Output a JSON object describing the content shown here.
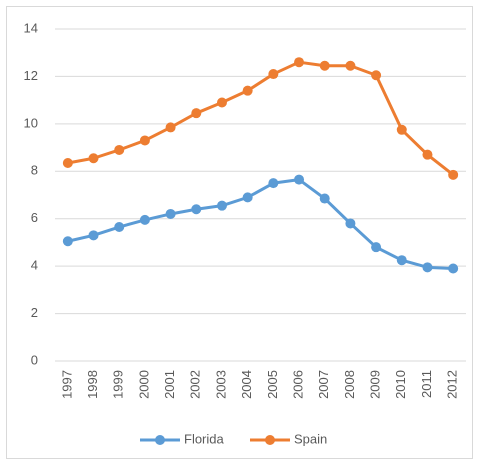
{
  "chart_data": {
    "type": "line",
    "categories": [
      "1997",
      "1998",
      "1999",
      "2000",
      "2001",
      "2002",
      "2003",
      "2004",
      "2005",
      "2006",
      "2007",
      "2008",
      "2009",
      "2010",
      "2011",
      "2012"
    ],
    "series": [
      {
        "name": "Florida",
        "color": "#5b9bd5",
        "values": [
          5.05,
          5.3,
          5.65,
          5.95,
          6.2,
          6.4,
          6.55,
          6.9,
          7.5,
          7.65,
          6.85,
          5.8,
          4.8,
          4.25,
          3.95,
          3.9
        ]
      },
      {
        "name": "Spain",
        "color": "#ed7d31",
        "values": [
          8.35,
          8.55,
          8.9,
          9.3,
          9.85,
          10.45,
          10.9,
          11.4,
          12.1,
          12.6,
          12.45,
          12.45,
          12.05,
          9.75,
          8.7,
          7.85
        ]
      }
    ],
    "ylim": [
      0,
      14
    ],
    "yticks": [
      0,
      2,
      4,
      6,
      8,
      10,
      12,
      14
    ],
    "grid": true,
    "legend": "bottom"
  }
}
